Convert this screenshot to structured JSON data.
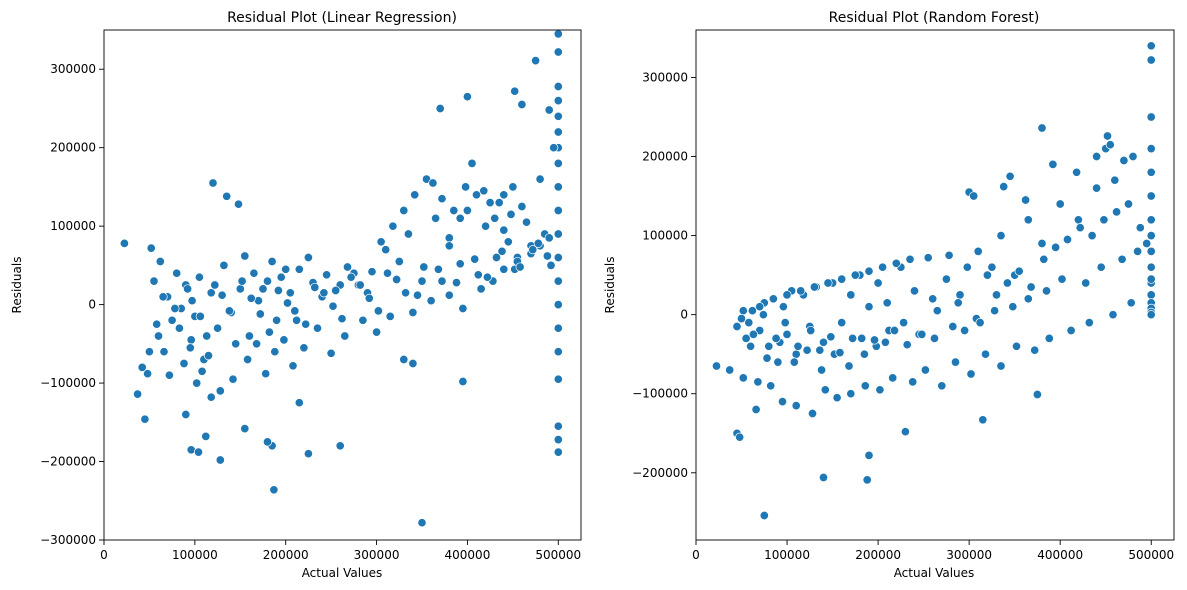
{
  "chart_data": [
    {
      "type": "scatter",
      "title": "Residual Plot (Linear Regression)",
      "xlabel": "Actual Values",
      "ylabel": "Residuals",
      "xlim": [
        0,
        525000
      ],
      "ylim": [
        -300000,
        350000
      ],
      "xticks": [
        0,
        100000,
        200000,
        300000,
        400000,
        500000
      ],
      "xtick_labels": [
        "0",
        "100000",
        "200000",
        "300000",
        "400000",
        "500000"
      ],
      "yticks": [
        -300000,
        -200000,
        -100000,
        0,
        100000,
        200000,
        300000
      ],
      "ytick_labels": [
        "−300000",
        "−200000",
        "−100000",
        "0",
        "100000",
        "200000",
        "300000"
      ],
      "color": "#1f77b4",
      "grid": false,
      "legend": "none",
      "x": [
        22500,
        37000,
        45000,
        48000,
        52000,
        55000,
        58000,
        62000,
        66000,
        70000,
        75000,
        80000,
        85000,
        90000,
        96000,
        100000,
        105000,
        110000,
        118000,
        125000,
        132000,
        140000,
        150000,
        160000,
        170000,
        180000,
        190000,
        200000,
        210000,
        225000,
        240000,
        260000,
        275000,
        290000,
        310000,
        325000,
        335000,
        350000,
        365000,
        380000,
        400000,
        420000,
        440000,
        450000,
        460000,
        480000,
        500000,
        500000,
        500000,
        500000,
        500000,
        500000,
        500000,
        500000,
        500000,
        500000,
        500000,
        500000,
        500000,
        500000,
        500000,
        500000,
        500000,
        500000,
        500000,
        500000,
        350000,
        187000,
        400000,
        370000,
        452000,
        460000,
        475000,
        490000,
        495000,
        405000,
        418000,
        425000,
        430000,
        440000,
        445000,
        455000,
        470000,
        485000,
        305000,
        318000,
        330000,
        342000,
        355000,
        362000,
        372000,
        385000,
        392000,
        398000,
        410000,
        435000,
        448000,
        465000,
        120000,
        135000,
        148000,
        155000,
        165000,
        175000,
        185000,
        195000,
        205000,
        215000,
        230000,
        245000,
        255000,
        268000,
        280000,
        295000,
        42000,
        50000,
        60000,
        72000,
        88000,
        95000,
        102000,
        108000,
        115000,
        128000,
        142000,
        158000,
        168000,
        178000,
        188000,
        198000,
        208000,
        220000,
        235000,
        250000,
        265000,
        285000,
        300000,
        315000,
        340000,
        360000,
        380000,
        395000,
        415000,
        428000,
        440000,
        455000,
        470000,
        480000,
        490000,
        65000,
        78000,
        92000,
        106000,
        122000,
        138000,
        152000,
        172000,
        192000,
        212000,
        232000,
        252000,
        272000,
        292000,
        312000,
        332000,
        352000,
        372000,
        392000,
        412000,
        432000,
        452000,
        472000,
        492000,
        83000,
        97000,
        113000,
        130000,
        145000,
        162000,
        182000,
        202000,
        222000,
        242000,
        262000,
        282000,
        302000,
        322000,
        345000,
        368000,
        388000,
        408000,
        422000,
        438000,
        458000,
        478000,
        488000,
        96000,
        104000,
        112000,
        128000,
        185000,
        225000,
        260000,
        155000,
        118000,
        180000,
        215000,
        90000,
        380000,
        395000,
        330000,
        340000
      ],
      "y": [
        78000,
        -114000,
        -146000,
        -88000,
        72000,
        30000,
        -25000,
        55000,
        -60000,
        10000,
        -20000,
        40000,
        -5000,
        25000,
        -45000,
        -15000,
        35000,
        -70000,
        15000,
        -30000,
        50000,
        -10000,
        20000,
        -40000,
        5000,
        30000,
        -20000,
        45000,
        -8000,
        60000,
        10000,
        25000,
        40000,
        15000,
        70000,
        55000,
        90000,
        30000,
        110000,
        85000,
        120000,
        100000,
        140000,
        150000,
        125000,
        160000,
        345000,
        322000,
        278000,
        260000,
        240000,
        220000,
        200000,
        180000,
        150000,
        120000,
        90000,
        60000,
        30000,
        0,
        -30000,
        -60000,
        -95000,
        -155000,
        -172000,
        -188000,
        -278000,
        -236000,
        265000,
        250000,
        272000,
        255000,
        311000,
        248000,
        200000,
        180000,
        145000,
        130000,
        110000,
        95000,
        80000,
        60000,
        75000,
        90000,
        80000,
        100000,
        120000,
        140000,
        160000,
        155000,
        135000,
        120000,
        110000,
        150000,
        140000,
        130000,
        115000,
        105000,
        155000,
        138000,
        128000,
        62000,
        40000,
        20000,
        55000,
        35000,
        15000,
        45000,
        28000,
        38000,
        18000,
        48000,
        25000,
        42000,
        -80000,
        -60000,
        -40000,
        -90000,
        -75000,
        -55000,
        -100000,
        -85000,
        -65000,
        -110000,
        -95000,
        -70000,
        -50000,
        -88000,
        -60000,
        -45000,
        -78000,
        -55000,
        -30000,
        -62000,
        -40000,
        -20000,
        -35000,
        -15000,
        -10000,
        5000,
        12000,
        -5000,
        20000,
        30000,
        45000,
        55000,
        65000,
        75000,
        85000,
        10000,
        -5000,
        20000,
        -15000,
        25000,
        -8000,
        30000,
        -12000,
        18000,
        -20000,
        22000,
        -2000,
        35000,
        8000,
        40000,
        15000,
        48000,
        30000,
        52000,
        38000,
        60000,
        45000,
        70000,
        50000,
        -30000,
        5000,
        -40000,
        12000,
        -50000,
        8000,
        -35000,
        2000,
        -25000,
        15000,
        -18000,
        25000,
        -8000,
        32000,
        12000,
        45000,
        28000,
        58000,
        35000,
        68000,
        48000,
        78000,
        62000,
        -185000,
        -188000,
        -168000,
        -198000,
        -180000,
        -190000,
        -180000,
        -158000,
        -118000,
        -175000,
        -125000,
        -140000,
        75000,
        -98000,
        -70000,
        -75000
      ]
    },
    {
      "type": "scatter",
      "title": "Residual Plot (Random Forest)",
      "xlabel": "Actual Values",
      "ylabel": "Residuals",
      "xlim": [
        0,
        525000
      ],
      "ylim": [
        -285000,
        360000
      ],
      "xticks": [
        0,
        100000,
        200000,
        300000,
        400000,
        500000
      ],
      "xtick_labels": [
        "0",
        "100000",
        "200000",
        "300000",
        "400000",
        "500000"
      ],
      "yticks": [
        -200000,
        -100000,
        0,
        100000,
        200000,
        300000
      ],
      "ytick_labels": [
        "−200000",
        "−100000",
        "0",
        "100000",
        "200000",
        "300000"
      ],
      "color": "#1f77b4",
      "grid": false,
      "legend": "none",
      "x": [
        22500,
        37000,
        45000,
        48000,
        52000,
        55000,
        58000,
        62000,
        66000,
        70000,
        75000,
        80000,
        85000,
        90000,
        96000,
        100000,
        105000,
        110000,
        118000,
        125000,
        132000,
        140000,
        150000,
        160000,
        170000,
        180000,
        190000,
        200000,
        210000,
        225000,
        240000,
        260000,
        275000,
        290000,
        310000,
        325000,
        335000,
        350000,
        365000,
        380000,
        400000,
        420000,
        440000,
        450000,
        460000,
        480000,
        500000,
        500000,
        500000,
        500000,
        500000,
        500000,
        500000,
        500000,
        500000,
        500000,
        500000,
        500000,
        500000,
        500000,
        500000,
        500000,
        500000,
        75000,
        140000,
        188000,
        190000,
        230000,
        315000,
        375000,
        380000,
        392000,
        418000,
        452000,
        455000,
        440000,
        470000,
        345000,
        362000,
        300000,
        305000,
        338000,
        45000,
        52000,
        60000,
        70000,
        78000,
        85000,
        92000,
        100000,
        108000,
        115000,
        122000,
        130000,
        138000,
        145000,
        152000,
        160000,
        168000,
        175000,
        182000,
        190000,
        198000,
        205000,
        212000,
        220000,
        228000,
        235000,
        245000,
        255000,
        265000,
        278000,
        288000,
        298000,
        308000,
        320000,
        330000,
        342000,
        355000,
        368000,
        382000,
        395000,
        408000,
        422000,
        435000,
        448000,
        462000,
        475000,
        488000,
        495000,
        50000,
        63000,
        74000,
        88000,
        98000,
        112000,
        126000,
        136000,
        148000,
        158000,
        172000,
        185000,
        196000,
        208000,
        218000,
        232000,
        248000,
        262000,
        282000,
        295000,
        312000,
        328000,
        348000,
        365000,
        385000,
        402000,
        428000,
        445000,
        468000,
        485000,
        68000,
        82000,
        95000,
        110000,
        128000,
        142000,
        155000,
        170000,
        186000,
        202000,
        216000,
        238000,
        252000,
        270000,
        285000,
        302000,
        318000,
        335000,
        352000,
        372000,
        388000,
        412000,
        432000,
        458000,
        478000
      ],
      "y": [
        -65000,
        -70000,
        -150000,
        -155000,
        -80000,
        -30000,
        -10000,
        5000,
        -120000,
        -20000,
        15000,
        -40000,
        20000,
        -60000,
        10000,
        -25000,
        30000,
        -50000,
        25000,
        -15000,
        35000,
        -35000,
        40000,
        -10000,
        25000,
        50000,
        10000,
        40000,
        15000,
        60000,
        30000,
        20000,
        45000,
        25000,
        80000,
        60000,
        100000,
        50000,
        120000,
        90000,
        140000,
        120000,
        160000,
        210000,
        170000,
        200000,
        340000,
        322000,
        250000,
        210000,
        180000,
        150000,
        120000,
        100000,
        80000,
        60000,
        40000,
        25000,
        15000,
        8000,
        3000,
        0,
        45000,
        -254000,
        -206000,
        -209000,
        -178000,
        -148000,
        -133000,
        -101000,
        236000,
        190000,
        180000,
        226000,
        215000,
        200000,
        195000,
        175000,
        145000,
        155000,
        150000,
        162000,
        -15000,
        5000,
        -40000,
        10000,
        -55000,
        20000,
        -35000,
        25000,
        -60000,
        30000,
        -45000,
        35000,
        -70000,
        40000,
        -50000,
        45000,
        -65000,
        50000,
        -30000,
        55000,
        -40000,
        60000,
        -20000,
        65000,
        -10000,
        70000,
        -25000,
        72000,
        5000,
        75000,
        15000,
        60000,
        -5000,
        50000,
        25000,
        40000,
        55000,
        35000,
        70000,
        85000,
        95000,
        110000,
        100000,
        120000,
        130000,
        140000,
        110000,
        90000,
        -5000,
        -25000,
        0,
        -30000,
        -10000,
        -40000,
        -20000,
        -45000,
        -28000,
        -48000,
        -30000,
        -50000,
        -32000,
        -35000,
        -20000,
        -38000,
        -25000,
        -30000,
        -15000,
        -20000,
        -10000,
        5000,
        10000,
        20000,
        30000,
        45000,
        40000,
        60000,
        70000,
        80000,
        -85000,
        -90000,
        -110000,
        -115000,
        -125000,
        -95000,
        -105000,
        -100000,
        -90000,
        -95000,
        -80000,
        -85000,
        -70000,
        -90000,
        -60000,
        -75000,
        -50000,
        -65000,
        -40000,
        -45000,
        -30000,
        -20000,
        -10000,
        0,
        15000
      ]
    }
  ]
}
